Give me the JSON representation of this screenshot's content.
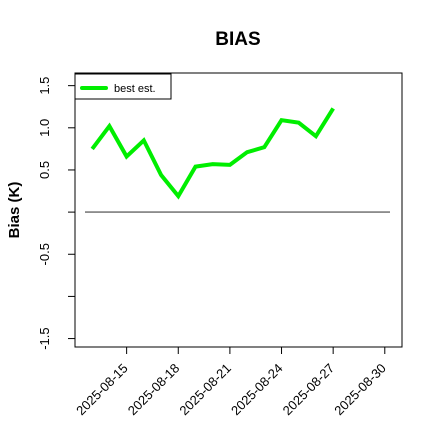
{
  "chart_data": {
    "type": "line",
    "title": "BIAS",
    "xlabel": "",
    "ylabel": "Bias (K)",
    "x_tick_labels": [
      "2025-08-15",
      "2025-08-18",
      "2025-08-21",
      "2025-08-24",
      "2025-08-27",
      "2025-08-30"
    ],
    "x_tick_dates": [
      "2025-08-15",
      "2025-08-18",
      "2025-08-21",
      "2025-08-24",
      "2025-08-27",
      "2025-08-30"
    ],
    "y_tick_labels": [
      "-1.5",
      "-0.5",
      "0.5",
      "1.0",
      "1.5"
    ],
    "y_tick_values": [
      -1.5,
      -0.5,
      0.5,
      1.0,
      1.5
    ],
    "y_minor_ticks": [
      -1.0,
      0.0
    ],
    "xlim": [
      "2025-08-12",
      "2025-08-31"
    ],
    "ylim": [
      -1.6,
      1.65
    ],
    "reference_line": 0.0,
    "reference_line_xlim": [
      "2025-08-12",
      "2025-08-31"
    ],
    "grid": false,
    "legend_position": "top-left",
    "colors": {
      "series": "#00ee00",
      "reference": "#666666",
      "axis": "#000000"
    },
    "series": [
      {
        "name": "best est.",
        "x": [
          "2025-08-13",
          "2025-08-14",
          "2025-08-15",
          "2025-08-16",
          "2025-08-17",
          "2025-08-18",
          "2025-08-19",
          "2025-08-20",
          "2025-08-21",
          "2025-08-22",
          "2025-08-23",
          "2025-08-24",
          "2025-08-25",
          "2025-08-26",
          "2025-08-27",
          "2025-08-28"
        ],
        "values": [
          0.75,
          1.02,
          0.66,
          0.85,
          0.44,
          0.19,
          0.54,
          0.57,
          0.56,
          0.71,
          0.77,
          1.09,
          1.06,
          0.9,
          1.23,
          null
        ]
      }
    ]
  }
}
